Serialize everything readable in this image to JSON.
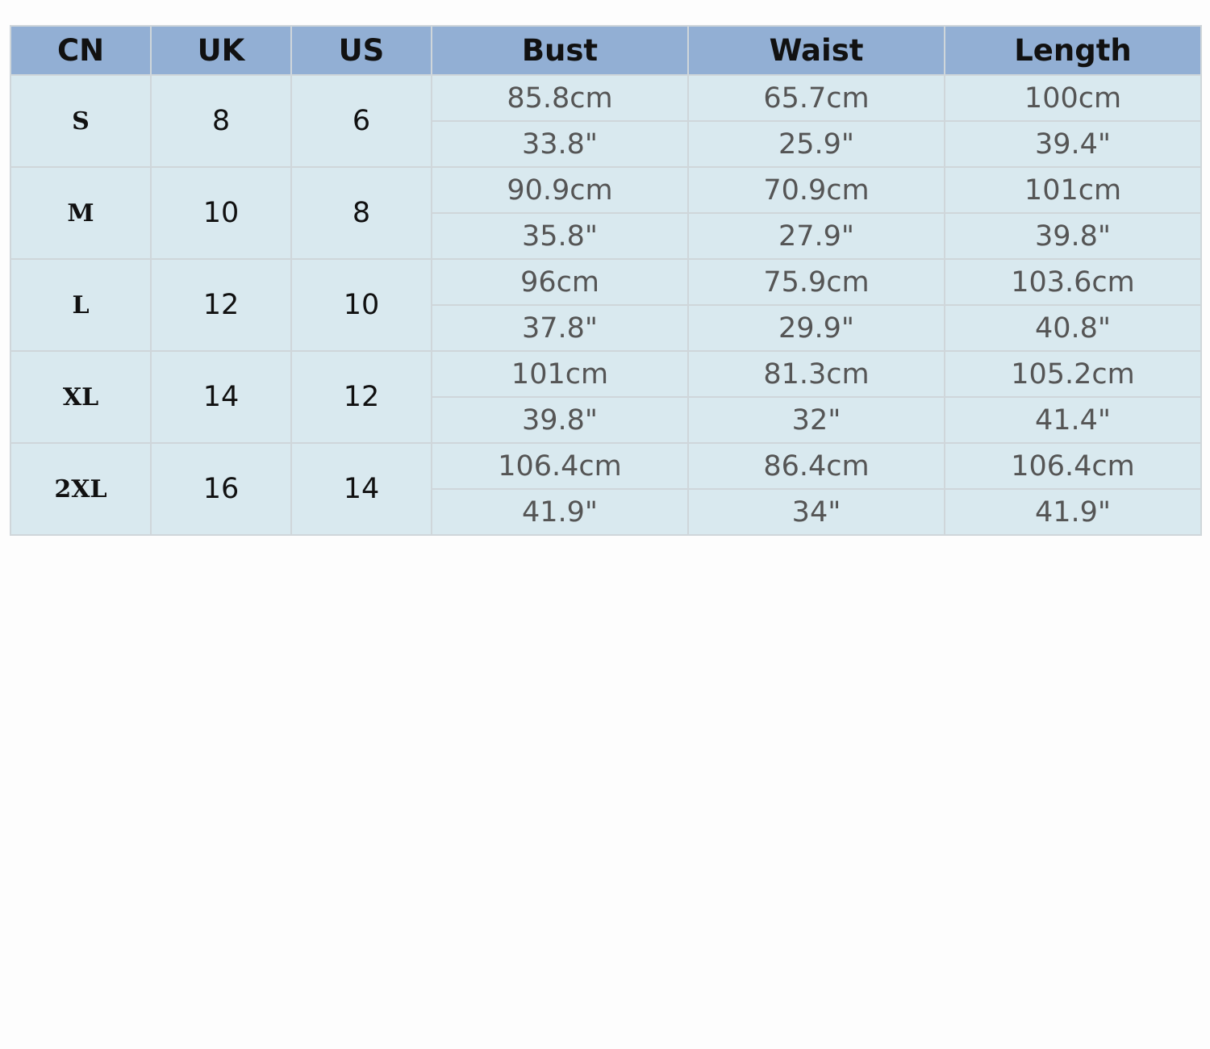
{
  "table": {
    "headers": [
      "CN",
      "UK",
      "US",
      "Bust",
      "Waist",
      "Length"
    ],
    "rows": [
      {
        "cn": "S",
        "uk": "8",
        "us": "6",
        "bust_cm": "85.8cm",
        "bust_in": "33.8\"",
        "waist_cm": "65.7cm",
        "waist_in": "25.9\"",
        "length_cm": "100cm",
        "length_in": "39.4\""
      },
      {
        "cn": "M",
        "uk": "10",
        "us": "8",
        "bust_cm": "90.9cm",
        "bust_in": "35.8\"",
        "waist_cm": "70.9cm",
        "waist_in": "27.9\"",
        "length_cm": "101cm",
        "length_in": "39.8\""
      },
      {
        "cn": "L",
        "uk": "12",
        "us": "10",
        "bust_cm": "96cm",
        "bust_in": "37.8\"",
        "waist_cm": "75.9cm",
        "waist_in": "29.9\"",
        "length_cm": "103.6cm",
        "length_in": "40.8\""
      },
      {
        "cn": "XL",
        "uk": "14",
        "us": "12",
        "bust_cm": "101cm",
        "bust_in": "39.8\"",
        "waist_cm": "81.3cm",
        "waist_in": "32\"",
        "length_cm": "105.2cm",
        "length_in": "41.4\""
      },
      {
        "cn": "2XL",
        "uk": "16",
        "us": "14",
        "bust_cm": "106.4cm",
        "bust_in": "41.9\"",
        "waist_cm": "86.4cm",
        "waist_in": "34\"",
        "length_cm": "106.4cm",
        "length_in": "41.9\""
      }
    ]
  },
  "colors": {
    "header_bg": "#92afd4",
    "body_bg": "#d9e9ef",
    "border": "#cfd6da",
    "measurement_text": "#555555",
    "label_text": "#111111"
  }
}
